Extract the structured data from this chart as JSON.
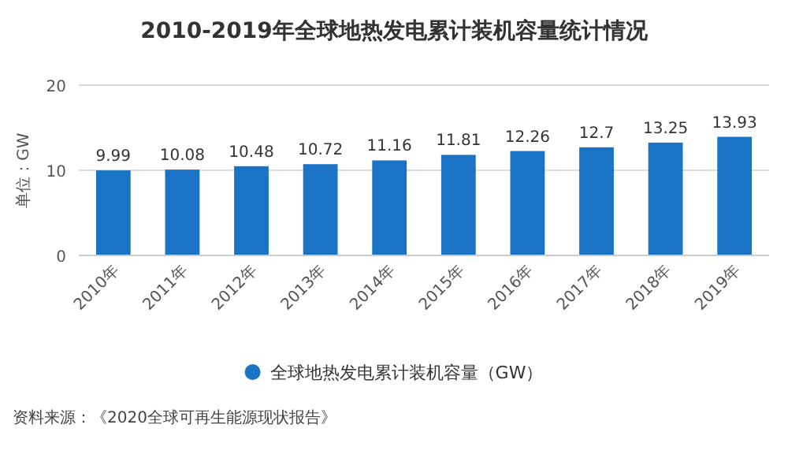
{
  "chart_data": {
    "type": "bar",
    "title": "2010-2019年全球地热发电累计装机容量统计情况",
    "ylabel": "单位：GW",
    "categories": [
      "2010年",
      "2011年",
      "2012年",
      "2013年",
      "2014年",
      "2015年",
      "2016年",
      "2017年",
      "2018年",
      "2019年"
    ],
    "series": [
      {
        "name": "全球地热发电累计装机容量（GW）",
        "color": "#1a73c4",
        "values": [
          9.99,
          10.08,
          10.48,
          10.72,
          11.16,
          11.81,
          12.26,
          12.7,
          13.25,
          13.93
        ]
      }
    ],
    "ylim": [
      0,
      20
    ],
    "yticks": [
      0,
      10,
      20
    ],
    "grid": "y",
    "data_labels": true,
    "legend": "bottom",
    "annotations": [
      "资料来源：《2020全球可再生能源现状报告》"
    ]
  }
}
